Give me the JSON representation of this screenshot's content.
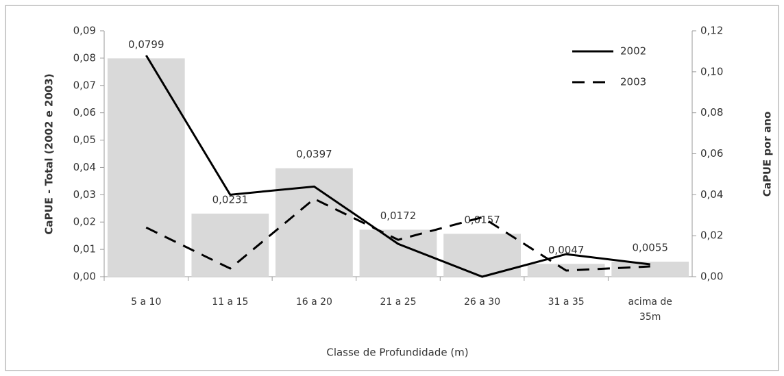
{
  "chart_data": {
    "type": "bar",
    "categories": [
      "5 a 10",
      "11 a 15",
      "16 a 20",
      "21 a 25",
      "26 a 30",
      "31 a 35",
      "acima de 35m"
    ],
    "values": [
      0.0799,
      0.0231,
      0.0397,
      0.0172,
      0.0157,
      0.0047,
      0.0055
    ],
    "value_labels": [
      "0,0799",
      "0,0231",
      "0,0397",
      "0,0172",
      "0,0157",
      "0,0047",
      "0,0055"
    ],
    "color": "#d9d9d9",
    "series": [
      {
        "name": "2002",
        "color": "#000000",
        "line_style": "solid",
        "axis": "y2",
        "values": [
          0.108,
          0.04,
          0.044,
          0.016,
          0.0,
          0.011,
          0.006
        ]
      },
      {
        "name": "2003",
        "color": "#000000",
        "line_style": "dashed",
        "axis": "y2",
        "values": [
          0.024,
          0.004,
          0.038,
          0.018,
          0.029,
          0.003,
          0.005
        ]
      }
    ],
    "xlabel": "Classe de Profundidade (m)",
    "ylabel": "CaPUE - Total (2002 e 2003)",
    "y2label": "CaPUE por ano",
    "ylim": [
      0,
      0.09
    ],
    "yticks": [
      {
        "value": 0,
        "label": "0,00"
      },
      {
        "value": 0.01,
        "label": "0,01"
      },
      {
        "value": 0.02,
        "label": "0,02"
      },
      {
        "value": 0.03,
        "label": "0,03"
      },
      {
        "value": 0.04,
        "label": "0,04"
      },
      {
        "value": 0.05,
        "label": "0,05"
      },
      {
        "value": 0.06,
        "label": "0,06"
      },
      {
        "value": 0.07,
        "label": "0,07"
      },
      {
        "value": 0.08,
        "label": "0,08"
      },
      {
        "value": 0.09,
        "label": "0,09"
      }
    ],
    "y2lim": [
      0,
      0.12
    ],
    "y2ticks": [
      {
        "value": 0,
        "label": "0,00"
      },
      {
        "value": 0.02,
        "label": "0,02"
      },
      {
        "value": 0.04,
        "label": "0,04"
      },
      {
        "value": 0.06,
        "label": "0,06"
      },
      {
        "value": 0.08,
        "label": "0,08"
      },
      {
        "value": 0.1,
        "label": "0,10"
      },
      {
        "value": 0.12,
        "label": "0,12"
      }
    ],
    "legend": "top-right"
  }
}
